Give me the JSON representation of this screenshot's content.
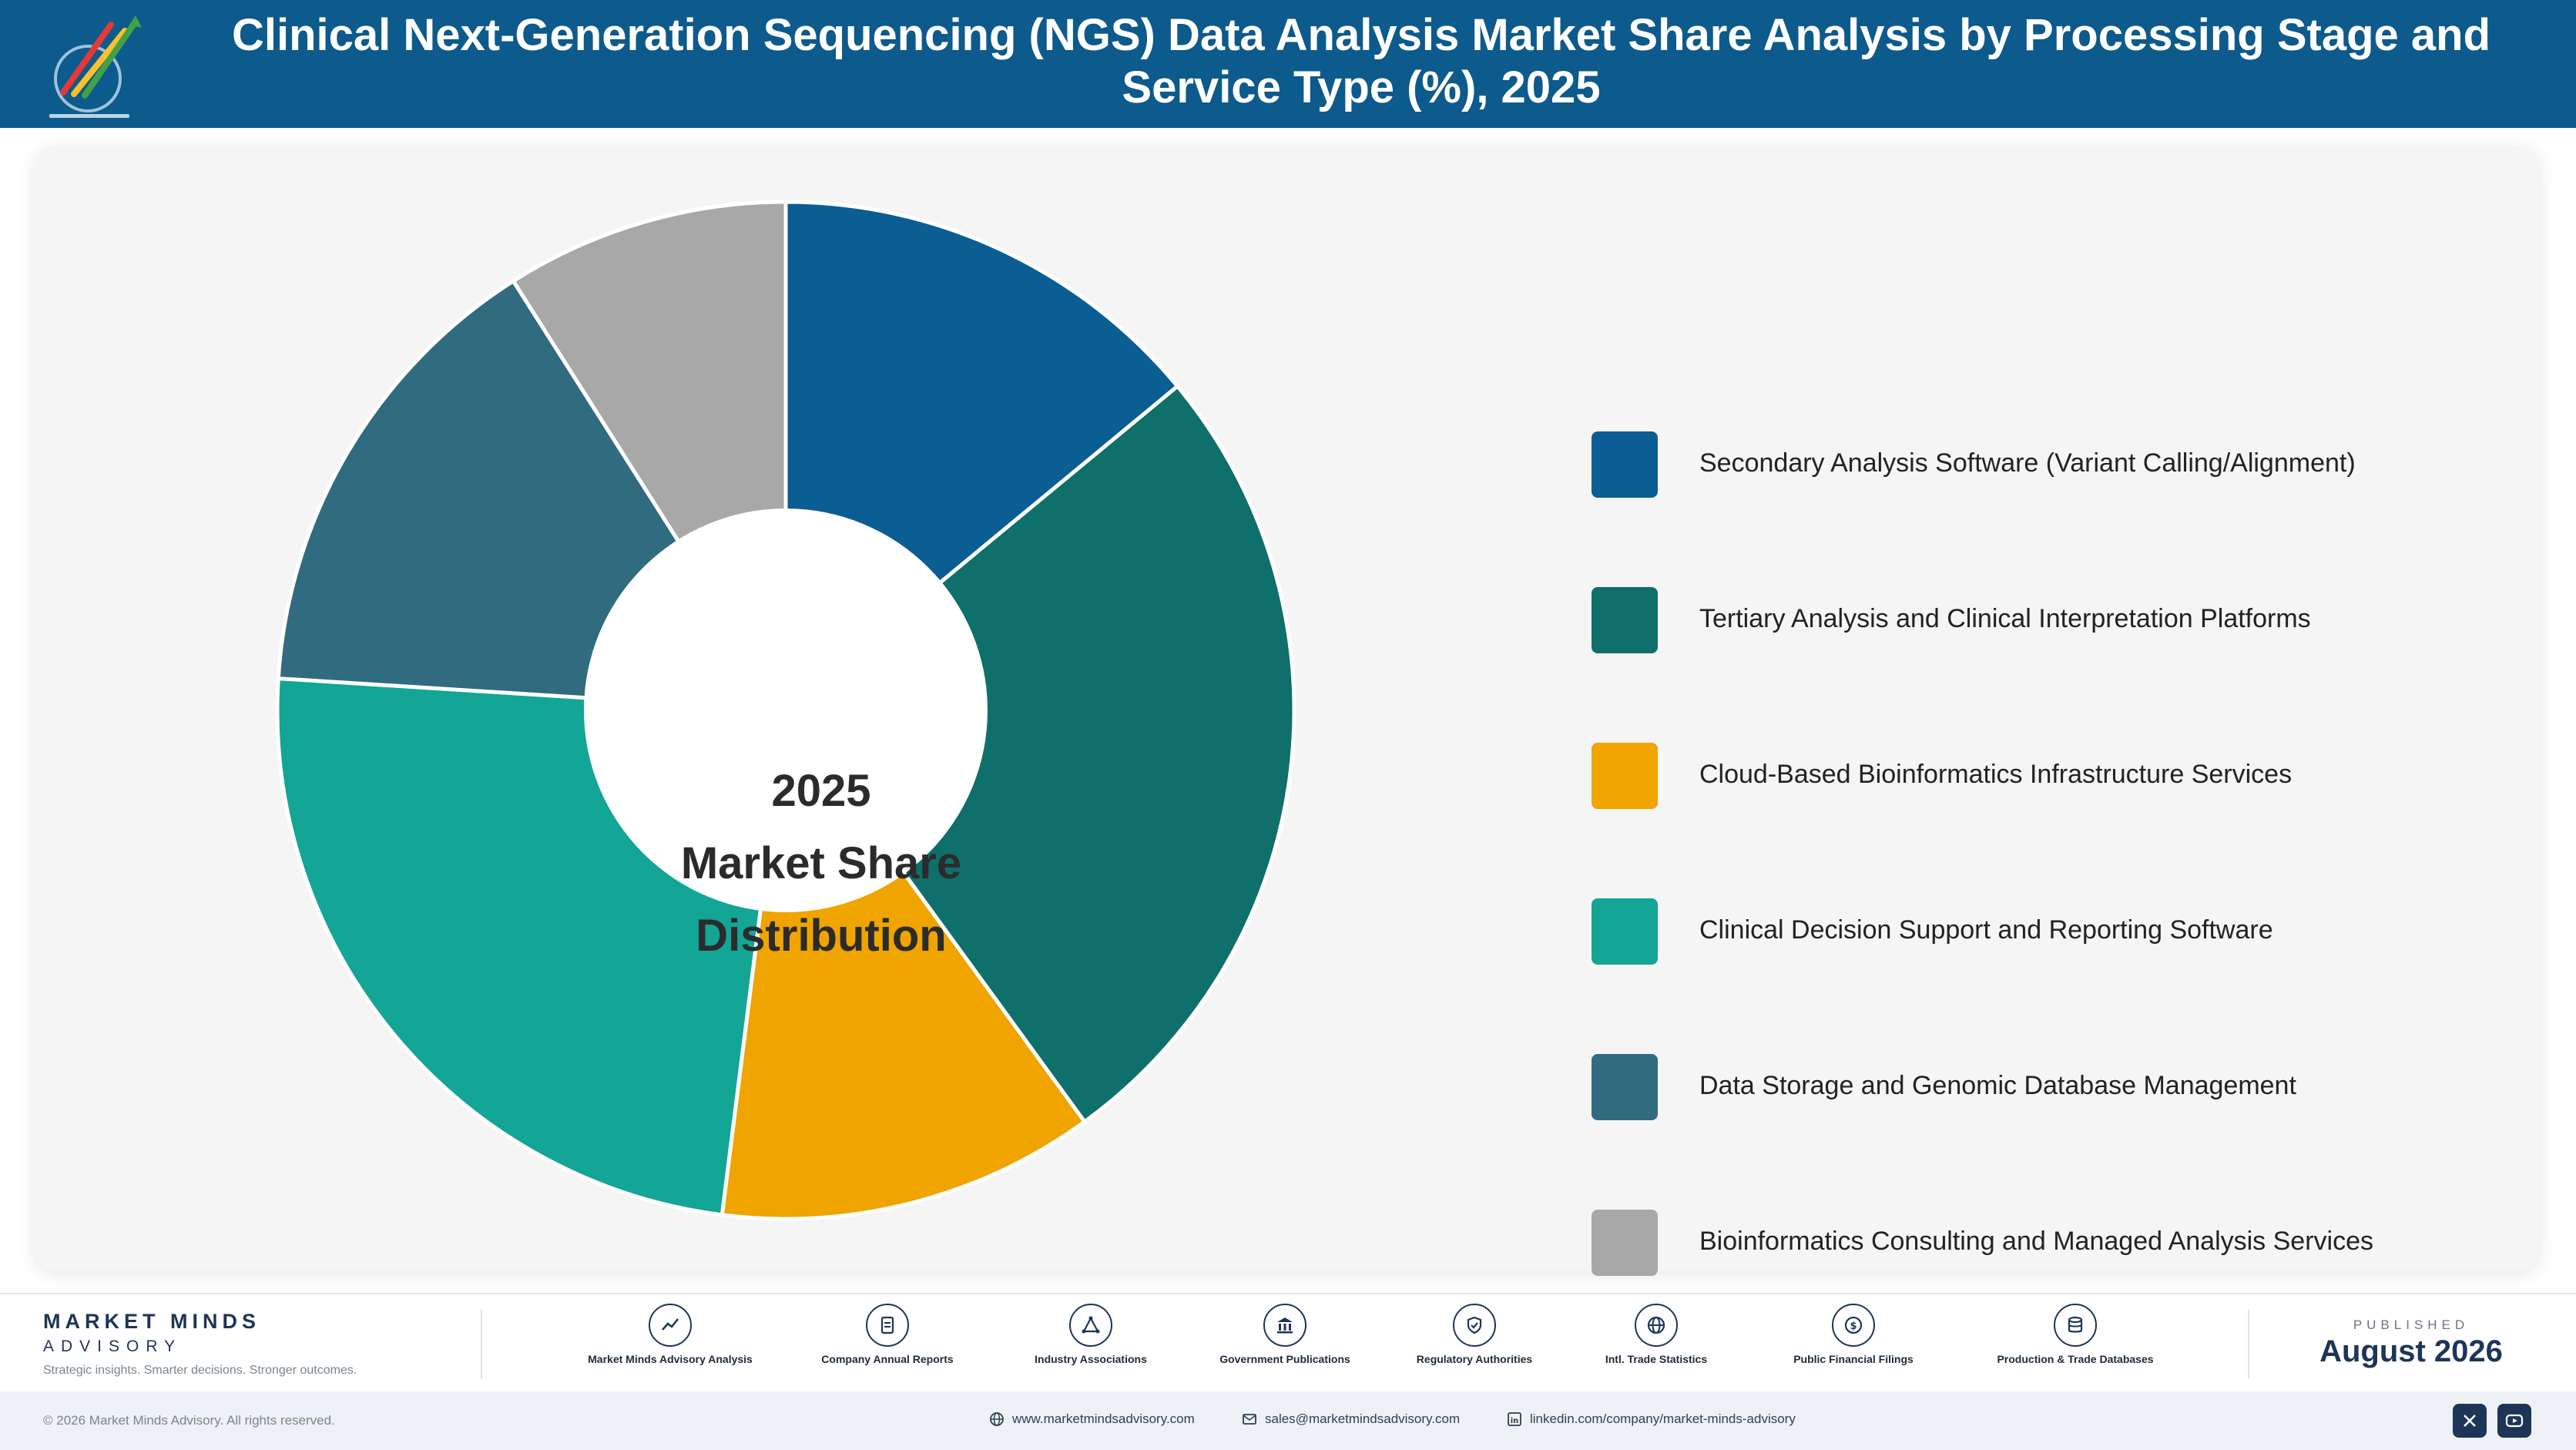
{
  "header": {
    "title": "Clinical Next-Generation Sequencing (NGS) Data Analysis Market Share Analysis by Processing Stage and Service Type (%), 2025",
    "logo_icon": "market-minds-logo-icon"
  },
  "chart_data": {
    "type": "pie",
    "title": "Clinical Next-Generation Sequencing (NGS) Data Analysis Market Share Analysis by Processing Stage and Service Type (%), 2025",
    "center_label": [
      "2025",
      "Market Share",
      "Distribution"
    ],
    "unit": "%",
    "legend_position": "right",
    "categories": [
      "Secondary Analysis Software (Variant Calling/Alignment)",
      "Tertiary Analysis and Clinical Interpretation Platforms",
      "Cloud-Based Bioinformatics Infrastructure Services",
      "Clinical Decision Support and Reporting Software",
      "Data Storage and Genomic Database Management",
      "Bioinformatics Consulting and Managed Analysis Services"
    ],
    "values": [
      14,
      26,
      12,
      24,
      15,
      9
    ],
    "colors": [
      "#0a5e93",
      "#0e6f6b",
      "#f0a400",
      "#13a596",
      "#306b7f",
      "#a8a8a8"
    ]
  },
  "footer": {
    "brand_name": "MARKET MINDS",
    "brand_sub": "ADVISORY",
    "brand_tagline": "Strategic insights. Smarter decisions. Stronger outcomes.",
    "sources": [
      {
        "label": "Market Minds Advisory Analysis",
        "icon": "trend-line-icon"
      },
      {
        "label": "Company Annual Reports",
        "icon": "document-icon"
      },
      {
        "label": "Industry Associations",
        "icon": "network-icon"
      },
      {
        "label": "Government Publications",
        "icon": "government-building-icon"
      },
      {
        "label": "Regulatory Authorities",
        "icon": "shield-check-icon"
      },
      {
        "label": "Intl. Trade Statistics",
        "icon": "globe-icon"
      },
      {
        "label": "Public Financial Filings",
        "icon": "currency-coin-icon"
      },
      {
        "label": "Production & Trade Databases",
        "icon": "database-icon"
      }
    ],
    "published_label": "PUBLISHED",
    "published_date": "August 2026"
  },
  "bottom_bar": {
    "copyright": "© 2026 Market Minds Advisory. All rights reserved.",
    "website": "www.marketmindsadvisory.com",
    "email": "sales@marketmindsadvisory.com",
    "linkedin": "linkedin.com/company/market-minds-advisory",
    "social_icons": [
      "x-icon",
      "youtube-icon"
    ]
  }
}
